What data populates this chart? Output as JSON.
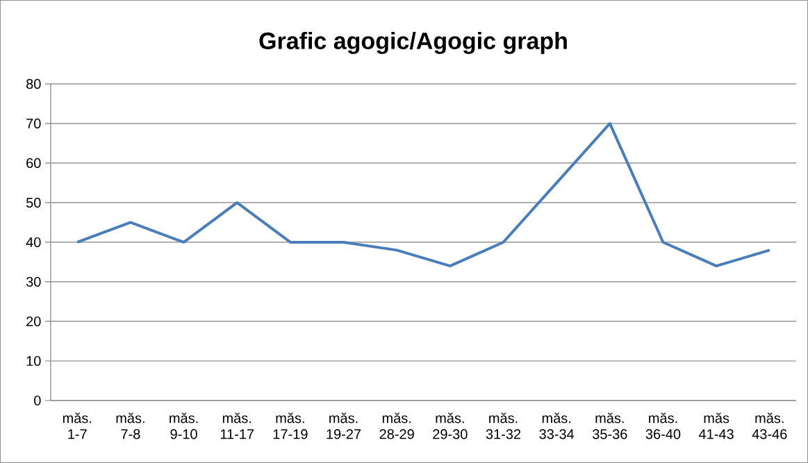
{
  "chart_data": {
    "type": "line",
    "title": "Grafic agogic/Agogic graph",
    "categories": [
      "măs. 1-7",
      "măs. 7-8",
      "măs. 9-10",
      "măs. 11-17",
      "măs. 17-19",
      "măs. 19-27",
      "măs. 28-29",
      "măs. 29-30",
      "măs. 31-32",
      "măs. 33-34",
      "măs. 35-36",
      "măs. 36-40",
      "măs 41-43",
      "măs. 43-46"
    ],
    "series": [
      {
        "color": "#4a7ebb",
        "values": [
          40,
          45,
          40,
          50,
          40,
          40,
          38,
          34,
          40,
          55,
          70,
          40,
          34,
          38
        ]
      }
    ],
    "ylim": [
      0,
      80
    ],
    "yticks": [
      0,
      10,
      20,
      30,
      40,
      50,
      60,
      70,
      80
    ],
    "grid": "y",
    "legend": false,
    "marker": "none",
    "line_style": "solid"
  }
}
